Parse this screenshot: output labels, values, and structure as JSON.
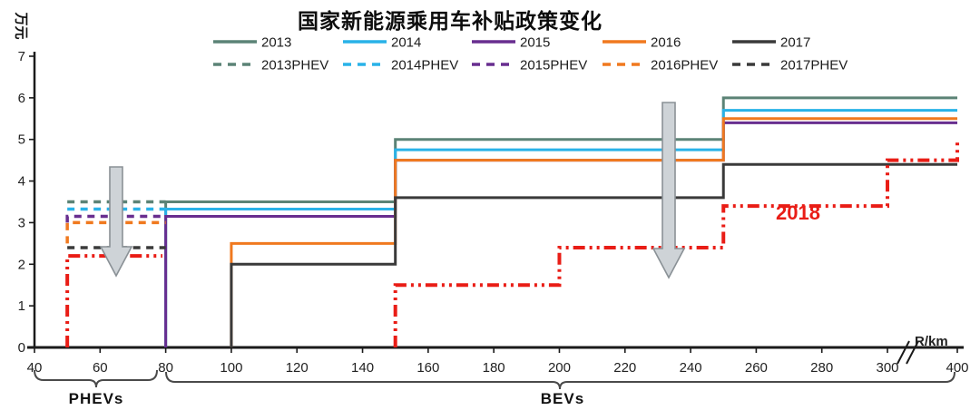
{
  "title": "国家新能源乘用车补贴政策变化",
  "axes": {
    "y_label": "万元",
    "x_label": "R/km",
    "y_ticks": [
      "0",
      "1",
      "2",
      "3",
      "4",
      "5",
      "6",
      "7"
    ],
    "x_ticks": [
      "40",
      "60",
      "80",
      "100",
      "120",
      "140",
      "160",
      "180",
      "200",
      "220",
      "240",
      "260",
      "280",
      "300",
      "400"
    ],
    "x_break_after": "300"
  },
  "legend": {
    "items": [
      {
        "label": "2013",
        "color_key": "2013",
        "style": "solid"
      },
      {
        "label": "2014",
        "color_key": "2014",
        "style": "solid"
      },
      {
        "label": "2015",
        "color_key": "2015",
        "style": "solid"
      },
      {
        "label": "2016",
        "color_key": "2016",
        "style": "solid"
      },
      {
        "label": "2017",
        "color_key": "2017",
        "style": "solid"
      },
      {
        "label": "2013PHEV",
        "color_key": "2013",
        "style": "dashed"
      },
      {
        "label": "2014PHEV",
        "color_key": "2014",
        "style": "dashed"
      },
      {
        "label": "2015PHEV",
        "color_key": "2015",
        "style": "dashed"
      },
      {
        "label": "2016PHEV",
        "color_key": "2016",
        "style": "dashed"
      },
      {
        "label": "2017PHEV",
        "color_key": "2017",
        "style": "dashed"
      }
    ]
  },
  "colors": {
    "2013": "#5b8376",
    "2014": "#29b2e8",
    "2015": "#682e8f",
    "2016": "#f0791f",
    "2017": "#3a3a3a",
    "2018": "#e91d16",
    "axis": "#1a1a1a",
    "tick_text": "#222222",
    "arrow_fill": "#ced3d7",
    "arrow_stroke": "#8a9196",
    "brace": "#4a4a4a"
  },
  "group_labels": {
    "phev": "PHEVs",
    "bev": "BEVs"
  },
  "annotation_2018": "2018",
  "chart_data": {
    "type": "line",
    "subtype": "step",
    "title": "国家新能源乘用车补贴政策变化",
    "xlabel": "R/km",
    "ylabel": "万元",
    "x_range": [
      40,
      400
    ],
    "y_range": [
      0,
      7
    ],
    "x_axis_break_between": [
      300,
      400
    ],
    "legend_position": "top",
    "grid": false,
    "series": [
      {
        "name": "2013",
        "group": "BEV",
        "line": "solid",
        "color_key": "2013",
        "start_value": 0,
        "steps": [
          {
            "from": 80,
            "to": 150,
            "value": 3.5
          },
          {
            "from": 150,
            "to": 250,
            "value": 5.0
          },
          {
            "from": 250,
            "to": 400,
            "value": 6.0
          }
        ]
      },
      {
        "name": "2014",
        "group": "BEV",
        "line": "solid",
        "color_key": "2014",
        "start_value": 0,
        "steps": [
          {
            "from": 80,
            "to": 150,
            "value": 3.325
          },
          {
            "from": 150,
            "to": 250,
            "value": 4.75
          },
          {
            "from": 250,
            "to": 400,
            "value": 5.7
          }
        ]
      },
      {
        "name": "2015",
        "group": "BEV",
        "line": "solid",
        "color_key": "2015",
        "start_value": 0,
        "steps": [
          {
            "from": 80,
            "to": 150,
            "value": 3.15
          },
          {
            "from": 150,
            "to": 250,
            "value": 4.5
          },
          {
            "from": 250,
            "to": 400,
            "value": 5.4
          }
        ]
      },
      {
        "name": "2016",
        "group": "BEV",
        "line": "solid",
        "color_key": "2016",
        "start_value": 0,
        "steps": [
          {
            "from": 100,
            "to": 150,
            "value": 2.5
          },
          {
            "from": 150,
            "to": 250,
            "value": 4.5
          },
          {
            "from": 250,
            "to": 400,
            "value": 5.5
          }
        ]
      },
      {
        "name": "2017",
        "group": "BEV",
        "line": "solid",
        "color_key": "2017",
        "start_value": 0,
        "steps": [
          {
            "from": 100,
            "to": 150,
            "value": 2.0
          },
          {
            "from": 150,
            "to": 250,
            "value": 3.6
          },
          {
            "from": 250,
            "to": 400,
            "value": 4.4
          }
        ]
      },
      {
        "name": "2013PHEV",
        "group": "PHEV",
        "line": "dashed",
        "color_key": "2013",
        "steps": [
          {
            "from": 50,
            "to": 80,
            "value": 3.5
          }
        ]
      },
      {
        "name": "2014PHEV",
        "group": "PHEV",
        "line": "dashed",
        "color_key": "2014",
        "steps": [
          {
            "from": 50,
            "to": 80,
            "value": 3.325
          }
        ]
      },
      {
        "name": "2015PHEV",
        "group": "PHEV",
        "line": "dashed",
        "color_key": "2015",
        "start_value": 3.0,
        "steps": [
          {
            "from": 50,
            "to": 80,
            "value": 3.15
          }
        ]
      },
      {
        "name": "2016PHEV",
        "group": "PHEV",
        "line": "dashed",
        "color_key": "2016",
        "start_value": 2.5,
        "steps": [
          {
            "from": 50,
            "to": 80,
            "value": 3.0
          }
        ]
      },
      {
        "name": "2017PHEV",
        "group": "PHEV",
        "line": "dashed",
        "color_key": "2017",
        "steps": [
          {
            "from": 50,
            "to": 80,
            "value": 2.4
          }
        ]
      },
      {
        "name": "2018",
        "group": "PHEV",
        "line": "dashdot",
        "color_key": "2018",
        "start_value": 0,
        "steps": [
          {
            "from": 50,
            "to": 79,
            "value": 2.2
          }
        ]
      },
      {
        "name": "2018",
        "group": "BEV",
        "line": "dashdot",
        "color_key": "2018",
        "start_value": 0,
        "end_value": 5.0,
        "steps": [
          {
            "from": 150,
            "to": 200,
            "value": 1.5
          },
          {
            "from": 200,
            "to": 250,
            "value": 2.4
          },
          {
            "from": 250,
            "to": 300,
            "value": 3.4
          },
          {
            "from": 300,
            "to": 400,
            "value": 4.5
          }
        ]
      }
    ],
    "annotations": [
      {
        "text": "2018",
        "color_key": "2018",
        "near": "red dash-dot line, 250-300 segment"
      }
    ]
  }
}
